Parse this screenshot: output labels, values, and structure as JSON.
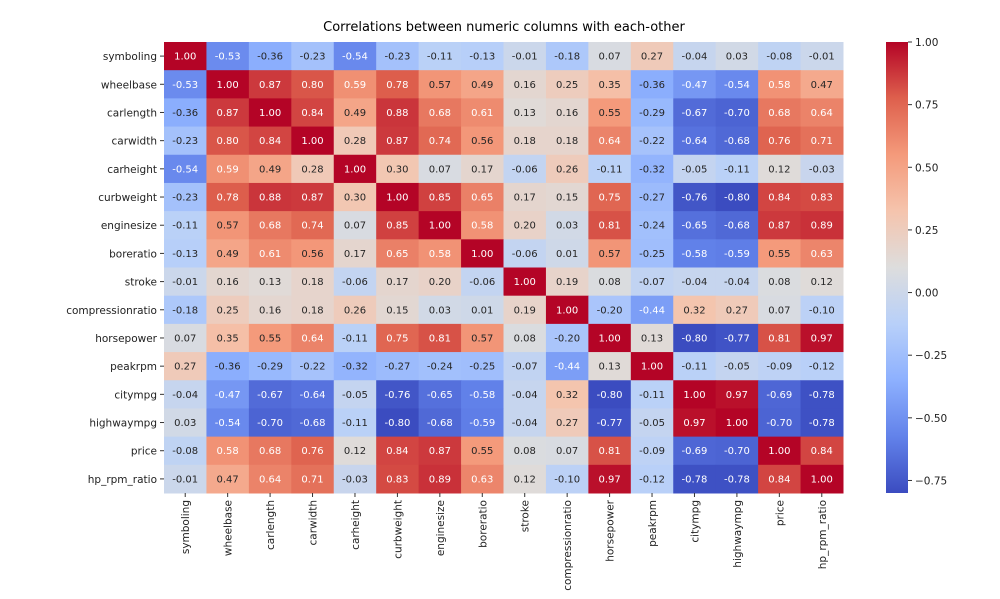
{
  "chart_data": {
    "type": "heatmap",
    "title": "Correlations between numeric columns with each-other",
    "colormap": "coolwarm",
    "vmin": -0.8,
    "vmax": 1.0,
    "colorbar_ticks": [
      "1.00",
      "0.75",
      "0.50",
      "0.25",
      "0.00",
      "−0.25",
      "−0.50",
      "−0.75"
    ],
    "colorbar_tick_values": [
      1.0,
      0.75,
      0.5,
      0.25,
      0.0,
      -0.25,
      -0.5,
      -0.75
    ],
    "colorbar_placement": "right",
    "labels": [
      "symboling",
      "wheelbase",
      "carlength",
      "carwidth",
      "carheight",
      "curbweight",
      "enginesize",
      "boreratio",
      "stroke",
      "compressionratio",
      "horsepower",
      "peakrpm",
      "citympg",
      "highwaympg",
      "price",
      "hp_rpm_ratio"
    ],
    "values": [
      [
        1.0,
        -0.53,
        -0.36,
        -0.23,
        -0.54,
        -0.23,
        -0.11,
        -0.13,
        -0.01,
        -0.18,
        0.07,
        0.27,
        -0.04,
        0.03,
        -0.08,
        -0.01
      ],
      [
        -0.53,
        1.0,
        0.87,
        0.8,
        0.59,
        0.78,
        0.57,
        0.49,
        0.16,
        0.25,
        0.35,
        -0.36,
        -0.47,
        -0.54,
        0.58,
        0.47
      ],
      [
        -0.36,
        0.87,
        1.0,
        0.84,
        0.49,
        0.88,
        0.68,
        0.61,
        0.13,
        0.16,
        0.55,
        -0.29,
        -0.67,
        -0.7,
        0.68,
        0.64
      ],
      [
        -0.23,
        0.8,
        0.84,
        1.0,
        0.28,
        0.87,
        0.74,
        0.56,
        0.18,
        0.18,
        0.64,
        -0.22,
        -0.64,
        -0.68,
        0.76,
        0.71
      ],
      [
        -0.54,
        0.59,
        0.49,
        0.28,
        1.0,
        0.3,
        0.07,
        0.17,
        -0.06,
        0.26,
        -0.11,
        -0.32,
        -0.05,
        -0.11,
        0.12,
        -0.03
      ],
      [
        -0.23,
        0.78,
        0.88,
        0.87,
        0.3,
        1.0,
        0.85,
        0.65,
        0.17,
        0.15,
        0.75,
        -0.27,
        -0.76,
        -0.8,
        0.84,
        0.83
      ],
      [
        -0.11,
        0.57,
        0.68,
        0.74,
        0.07,
        0.85,
        1.0,
        0.58,
        0.2,
        0.03,
        0.81,
        -0.24,
        -0.65,
        -0.68,
        0.87,
        0.89
      ],
      [
        -0.13,
        0.49,
        0.61,
        0.56,
        0.17,
        0.65,
        0.58,
        1.0,
        -0.06,
        0.01,
        0.57,
        -0.25,
        -0.58,
        -0.59,
        0.55,
        0.63
      ],
      [
        -0.01,
        0.16,
        0.13,
        0.18,
        -0.06,
        0.17,
        0.2,
        -0.06,
        1.0,
        0.19,
        0.08,
        -0.07,
        -0.04,
        -0.04,
        0.08,
        0.12
      ],
      [
        -0.18,
        0.25,
        0.16,
        0.18,
        0.26,
        0.15,
        0.03,
        0.01,
        0.19,
        1.0,
        -0.2,
        -0.44,
        0.32,
        0.27,
        0.07,
        -0.1
      ],
      [
        0.07,
        0.35,
        0.55,
        0.64,
        -0.11,
        0.75,
        0.81,
        0.57,
        0.08,
        -0.2,
        1.0,
        0.13,
        -0.8,
        -0.77,
        0.81,
        0.97
      ],
      [
        0.27,
        -0.36,
        -0.29,
        -0.22,
        -0.32,
        -0.27,
        -0.24,
        -0.25,
        -0.07,
        -0.44,
        0.13,
        1.0,
        -0.11,
        -0.05,
        -0.09,
        -0.12
      ],
      [
        -0.04,
        -0.47,
        -0.67,
        -0.64,
        -0.05,
        -0.76,
        -0.65,
        -0.58,
        -0.04,
        0.32,
        -0.8,
        -0.11,
        1.0,
        0.97,
        -0.69,
        -0.78
      ],
      [
        0.03,
        -0.54,
        -0.7,
        -0.68,
        -0.11,
        -0.8,
        -0.68,
        -0.59,
        -0.04,
        0.27,
        -0.77,
        -0.05,
        0.97,
        1.0,
        -0.7,
        -0.78
      ],
      [
        -0.08,
        0.58,
        0.68,
        0.76,
        0.12,
        0.84,
        0.87,
        0.55,
        0.08,
        0.07,
        0.81,
        -0.09,
        -0.69,
        -0.7,
        1.0,
        0.84
      ],
      [
        -0.01,
        0.47,
        0.64,
        0.71,
        -0.03,
        0.83,
        0.89,
        0.63,
        0.12,
        -0.1,
        0.97,
        -0.12,
        -0.78,
        -0.78,
        0.84,
        1.0
      ]
    ]
  }
}
